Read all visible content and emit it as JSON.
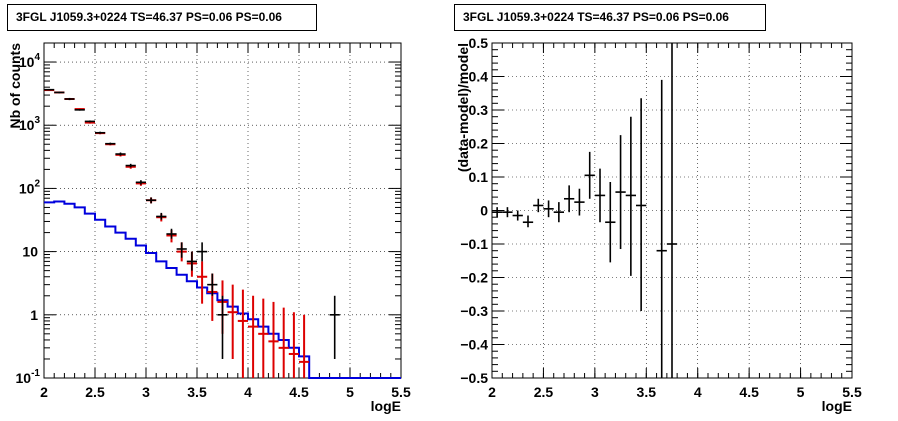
{
  "chart_data": [
    {
      "type": "line",
      "title": "3FGL J1059.3+0224 TS=46.37 PS=0.06 PS=0.06",
      "xlabel": "logE",
      "ylabel": "Nb of counts",
      "xlim": [
        2,
        5.5
      ],
      "ylim": [
        0.1,
        20000
      ],
      "yscale": "log",
      "grid": true,
      "x_ticks": [
        "2",
        "2.5",
        "3",
        "3.5",
        "4",
        "4.5",
        "5",
        "5.5"
      ],
      "y_ticks": [
        "10^-1",
        "1",
        "10",
        "10^2",
        "10^3",
        "10^4"
      ],
      "series": [
        {
          "color": "#0000dd",
          "style": "histogram",
          "bin_edges": [
            2.0,
            2.1,
            2.2,
            2.3,
            2.4,
            2.5,
            2.6,
            2.7,
            2.8,
            2.9,
            3.0,
            3.1,
            3.2,
            3.3,
            3.4,
            3.5,
            3.6,
            3.7,
            3.8,
            3.9,
            4.0,
            4.1,
            4.2,
            4.3,
            4.4,
            4.5,
            4.6,
            4.7,
            4.8,
            4.9,
            5.0,
            5.1,
            5.2,
            5.3,
            5.4,
            5.5
          ],
          "values": [
            60,
            62,
            57,
            50,
            40,
            32,
            25,
            20,
            16,
            12.5,
            9.5,
            7,
            5.5,
            4.3,
            3.4,
            2.7,
            2.2,
            1.7,
            1.35,
            1.05,
            0.85,
            0.65,
            0.5,
            0.4,
            0.3,
            0.22,
            0.1,
            0.1,
            0.1,
            0.1,
            0.1,
            0.1,
            0.1,
            0.1,
            0.1
          ]
        },
        {
          "color": "#dd0000",
          "style": "error-bars",
          "x": [
            2.05,
            2.15,
            2.25,
            2.35,
            2.45,
            2.55,
            2.65,
            2.75,
            2.85,
            2.95,
            3.05,
            3.15,
            3.25,
            3.35,
            3.45,
            3.55,
            3.65,
            3.75,
            3.85,
            3.95,
            4.05,
            4.15,
            4.25,
            4.35,
            4.45,
            4.55
          ],
          "y": [
            3600,
            3300,
            2600,
            1800,
            1100,
            750,
            500,
            340,
            220,
            120,
            65,
            35,
            18,
            10,
            6.5,
            4,
            2.3,
            1.6,
            1.1,
            0.8,
            0.65,
            0.5,
            0.38,
            0.3,
            0.24,
            0.18
          ],
          "y_low": [
            3500,
            3200,
            2500,
            1750,
            1060,
            720,
            480,
            320,
            205,
            110,
            58,
            30,
            14,
            7,
            4,
            1.5,
            0.8,
            0.5,
            0.2,
            0.1,
            0.1,
            0.1,
            0.1,
            0.1,
            0.1,
            0.1
          ],
          "y_high": [
            3700,
            3400,
            2700,
            1850,
            1140,
            780,
            520,
            360,
            235,
            130,
            72,
            40,
            22,
            14,
            10,
            7,
            4.5,
            3.5,
            3,
            2.5,
            2,
            1.8,
            1.6,
            1.3,
            1.1,
            1
          ]
        },
        {
          "color": "#000000",
          "style": "error-bars",
          "x": [
            2.05,
            2.15,
            2.25,
            2.35,
            2.45,
            2.55,
            2.65,
            2.75,
            2.85,
            2.95,
            3.05,
            3.15,
            3.25,
            3.35,
            3.45,
            3.55,
            3.65,
            3.75,
            4.85
          ],
          "y": [
            3650,
            3300,
            2600,
            1750,
            1150,
            760,
            510,
            350,
            230,
            125,
            65,
            36,
            19,
            11,
            7,
            10,
            3,
            1,
            1
          ],
          "y_low": [
            3550,
            3200,
            2500,
            1700,
            1110,
            730,
            490,
            330,
            215,
            115,
            58,
            32,
            16,
            8,
            5,
            7,
            2,
            0.2,
            0.2
          ],
          "y_high": [
            3750,
            3400,
            2700,
            1800,
            1190,
            790,
            530,
            370,
            245,
            135,
            72,
            41,
            23,
            14,
            10,
            14,
            4.5,
            2,
            2
          ]
        }
      ]
    },
    {
      "type": "scatter",
      "title": "3FGL J1059.3+0224 TS=46.37 PS=0.06 PS=0.06",
      "xlabel": "logE",
      "ylabel": "(data-model)/model",
      "xlim": [
        2,
        5.5
      ],
      "ylim": [
        -0.5,
        0.5
      ],
      "grid": true,
      "x_ticks": [
        "2",
        "2.5",
        "3",
        "3.5",
        "4",
        "4.5",
        "5",
        "5.5"
      ],
      "y_ticks": [
        "−0.5",
        "−0.4",
        "−0.3",
        "−0.2",
        "−0.1",
        "0",
        "0.1",
        "0.2",
        "0.3",
        "0.4",
        "0.5"
      ],
      "series": [
        {
          "color": "#000000",
          "style": "error-bars",
          "x": [
            2.05,
            2.15,
            2.25,
            2.35,
            2.45,
            2.55,
            2.65,
            2.75,
            2.85,
            2.95,
            3.05,
            3.15,
            3.25,
            3.35,
            3.45,
            3.65,
            3.75
          ],
          "y": [
            -0.005,
            -0.005,
            -0.015,
            -0.035,
            0.015,
            0.005,
            -0.005,
            0.035,
            0.025,
            0.105,
            0.045,
            -0.035,
            0.055,
            0.045,
            0.015,
            -0.12,
            -0.1
          ],
          "y_low": [
            -0.02,
            -0.02,
            -0.03,
            -0.05,
            -0.005,
            -0.02,
            -0.035,
            -0.005,
            -0.015,
            0.035,
            -0.035,
            -0.155,
            -0.115,
            -0.195,
            -0.3,
            -0.5,
            -0.5
          ],
          "y_high": [
            0.01,
            0.01,
            0.0,
            -0.015,
            0.035,
            0.03,
            0.025,
            0.075,
            0.065,
            0.175,
            0.125,
            0.085,
            0.225,
            0.28,
            0.335,
            0.39,
            0.5
          ]
        }
      ]
    }
  ]
}
